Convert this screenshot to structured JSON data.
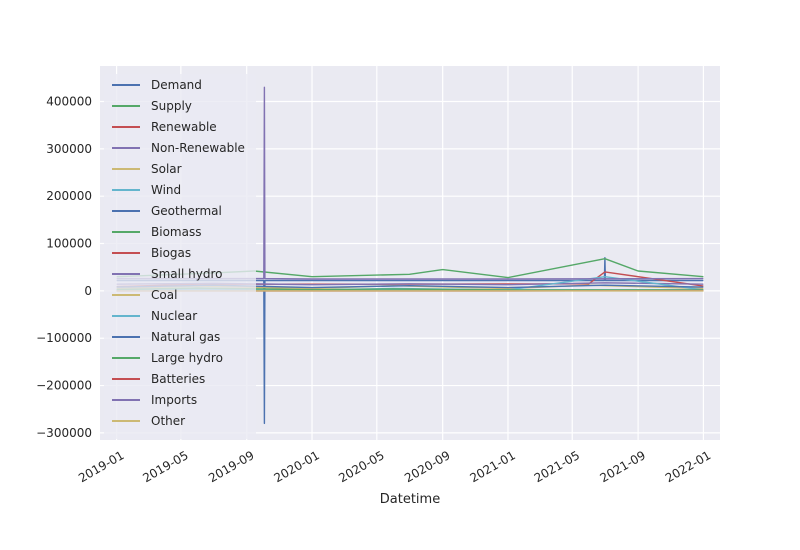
{
  "chart_data": {
    "type": "line",
    "title": "",
    "xlabel": "Datetime",
    "ylabel": "",
    "x_ticks": [
      "2019-01",
      "2019-05",
      "2019-09",
      "2020-01",
      "2020-05",
      "2020-09",
      "2021-01",
      "2021-05",
      "2021-09",
      "2022-01"
    ],
    "y_ticks": [
      -300000,
      -200000,
      -100000,
      0,
      100000,
      200000,
      300000,
      400000
    ],
    "y_tick_labels": [
      "−300000",
      "−200000",
      "−100000",
      "0",
      "100000",
      "200000",
      "300000",
      "400000"
    ],
    "xlim": [
      "2018-12-01",
      "2022-02-01"
    ],
    "ylim": [
      -315000,
      475000
    ],
    "grid": true,
    "legend_position": "upper-left",
    "series": [
      {
        "name": "Demand",
        "color": "#4c72b0",
        "x": [
          "2019-01-01",
          "2019-10-03",
          "2019-10-04",
          "2019-10-05",
          "2021-06-30",
          "2021-07-01",
          "2021-07-02",
          "2022-01-01"
        ],
        "y": [
          22000,
          22000,
          -280000,
          22000,
          22000,
          70000,
          22000,
          22000
        ]
      },
      {
        "name": "Supply",
        "color": "#55a868",
        "x": [
          "2019-01-01",
          "2019-07-01",
          "2019-09-15",
          "2020-01-01",
          "2020-07-01",
          "2020-09-01",
          "2021-01-01",
          "2021-07-01",
          "2021-09-01",
          "2022-01-01"
        ],
        "y": [
          30000,
          38000,
          42000,
          30000,
          35000,
          45000,
          28000,
          68000,
          42000,
          30000
        ]
      },
      {
        "name": "Renewable",
        "color": "#c44e52",
        "x": [
          "2019-01-01",
          "2019-06-01",
          "2020-06-01",
          "2021-06-01",
          "2021-07-01",
          "2022-01-01"
        ],
        "y": [
          9000,
          14000,
          14000,
          15000,
          40000,
          10000
        ]
      },
      {
        "name": "Non-Renewable",
        "color": "#8172b2",
        "x": [
          "2019-01-01",
          "2019-07-01",
          "2020-01-01",
          "2020-07-01",
          "2021-01-01",
          "2021-07-01",
          "2022-01-01"
        ],
        "y": [
          14000,
          16000,
          13000,
          15000,
          13000,
          17000,
          14000
        ]
      },
      {
        "name": "Solar",
        "color": "#ccb974",
        "x": [
          "2019-01-01",
          "2019-06-01",
          "2020-01-01",
          "2020-06-01",
          "2021-01-01",
          "2021-06-01",
          "2022-01-01"
        ],
        "y": [
          5000,
          10000,
          5000,
          11000,
          5000,
          12000,
          5000
        ]
      },
      {
        "name": "Wind",
        "color": "#64b5cd",
        "x": [
          "2019-01-01",
          "2019-06-01",
          "2020-01-01",
          "2020-06-01",
          "2021-01-01",
          "2021-07-01",
          "2022-01-01"
        ],
        "y": [
          2000,
          5000,
          2000,
          5000,
          2000,
          30000,
          2000
        ]
      },
      {
        "name": "Geothermal",
        "color": "#4c72b0",
        "x": [
          "2019-01-01",
          "2022-01-01"
        ],
        "y": [
          900,
          900
        ]
      },
      {
        "name": "Biomass",
        "color": "#55a868",
        "x": [
          "2019-01-01",
          "2022-01-01"
        ],
        "y": [
          400,
          400
        ]
      },
      {
        "name": "Biogas",
        "color": "#c44e52",
        "x": [
          "2019-01-01",
          "2022-01-01"
        ],
        "y": [
          200,
          200
        ]
      },
      {
        "name": "Small hydro",
        "color": "#8172b2",
        "x": [
          "2019-01-01",
          "2022-01-01"
        ],
        "y": [
          500,
          500
        ]
      },
      {
        "name": "Coal",
        "color": "#ccb974",
        "x": [
          "2019-01-01",
          "2022-01-01"
        ],
        "y": [
          10,
          10
        ]
      },
      {
        "name": "Nuclear",
        "color": "#64b5cd",
        "x": [
          "2019-01-01",
          "2022-01-01"
        ],
        "y": [
          2200,
          2200
        ]
      },
      {
        "name": "Natural gas",
        "color": "#4c72b0",
        "x": [
          "2019-01-01",
          "2019-07-01",
          "2020-01-01",
          "2020-07-01",
          "2021-01-01",
          "2021-07-01",
          "2022-01-01"
        ],
        "y": [
          8000,
          12000,
          7000,
          11000,
          7000,
          12000,
          8000
        ]
      },
      {
        "name": "Large hydro",
        "color": "#55a868",
        "x": [
          "2019-01-01",
          "2019-06-01",
          "2020-01-01",
          "2020-06-01",
          "2021-01-01",
          "2022-01-01"
        ],
        "y": [
          3000,
          6000,
          2500,
          4000,
          2000,
          2000
        ]
      },
      {
        "name": "Batteries",
        "color": "#c44e52",
        "x": [
          "2019-01-01",
          "2021-01-01",
          "2022-01-01"
        ],
        "y": [
          0,
          0,
          500
        ]
      },
      {
        "name": "Imports",
        "color": "#8172b2",
        "x": [
          "2019-01-01",
          "2019-10-03",
          "2019-10-04",
          "2019-10-05",
          "2020-01-01",
          "2021-01-01",
          "2022-01-01"
        ],
        "y": [
          26000,
          26000,
          430000,
          26000,
          25000,
          25000,
          26000
        ]
      },
      {
        "name": "Other",
        "color": "#ccb974",
        "x": [
          "2019-01-01",
          "2022-01-01"
        ],
        "y": [
          100,
          100
        ]
      }
    ]
  }
}
